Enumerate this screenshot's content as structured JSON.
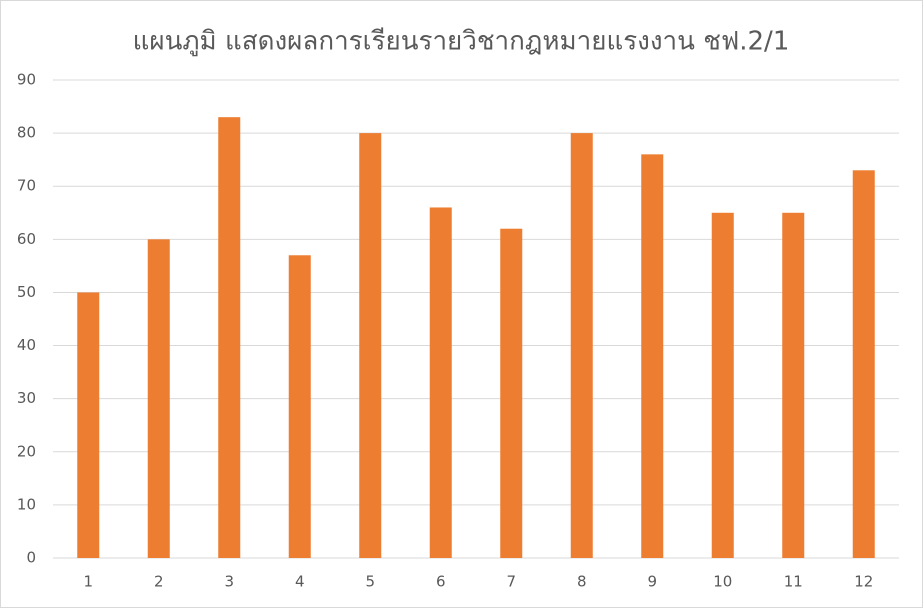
{
  "chart_data": {
    "type": "bar",
    "title": "แผนภูมิ แสดงผลการเรียนรายวิชากฎหมายแรงงาน  ชฟ.2/1",
    "categories": [
      "1",
      "2",
      "3",
      "4",
      "5",
      "6",
      "7",
      "8",
      "9",
      "10",
      "11",
      "12"
    ],
    "values": [
      50,
      60,
      83,
      57,
      80,
      66,
      62,
      80,
      76,
      65,
      65,
      73
    ],
    "color": "#ed7d31",
    "ylim": [
      0,
      90
    ],
    "yticks": [
      0,
      10,
      20,
      30,
      40,
      50,
      60,
      70,
      80,
      90
    ],
    "grid": true
  }
}
